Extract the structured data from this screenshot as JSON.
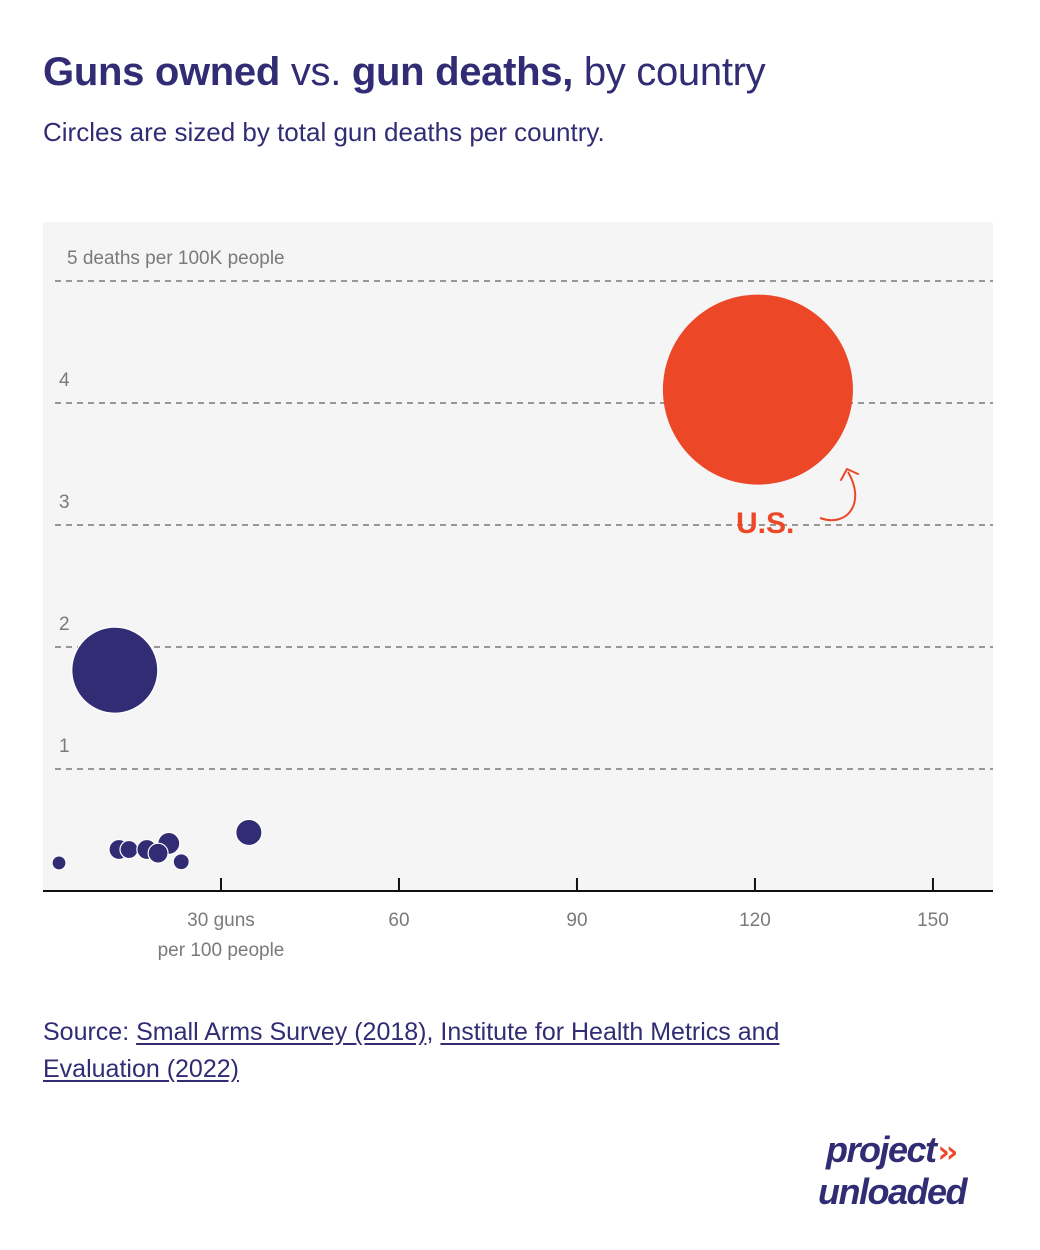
{
  "header": {
    "title_part1": "Guns owned",
    "title_part2": " vs. ",
    "title_part3": "gun deaths,",
    "title_part4": " by country",
    "subtitle": "Circles are sized by total gun deaths per country."
  },
  "colors": {
    "navy": "#312c74",
    "highlight": "#ec4727",
    "plot_background": "#f5f5f5",
    "grid": "#7a7a7a",
    "axis": "#111111"
  },
  "chart_data": {
    "type": "scatter",
    "title": "Guns owned vs. gun deaths, by country",
    "subtitle": "Circles are sized by total gun deaths per country.",
    "xlabel": "guns per 100 people",
    "ylabel": "deaths per 100K people",
    "xlim": [
      0,
      160
    ],
    "ylim": [
      0,
      5
    ],
    "grid": true,
    "x_ticks": [
      30,
      60,
      90,
      120,
      150
    ],
    "x_tick_labels": [
      "30 guns",
      "60",
      "90",
      "120",
      "150"
    ],
    "x_tick_sublabel": "per 100 people",
    "y_ticks": [
      1,
      2,
      3,
      4,
      5
    ],
    "y_tick_labels": [
      "1",
      "2",
      "3",
      "4",
      "5 deaths per 100K people"
    ],
    "size_encoding": "total gun deaths (relative, U.S. = 100)",
    "points": [
      {
        "x": 120.5,
        "y": 4.11,
        "size": 100,
        "highlight": true,
        "label": "U.S."
      },
      {
        "x": 12.1,
        "y": 1.81,
        "size": 20.5,
        "highlight": false
      },
      {
        "x": 2.7,
        "y": 0.23,
        "size": 0.54,
        "highlight": false
      },
      {
        "x": 12.8,
        "y": 0.34,
        "size": 1.1,
        "highlight": false
      },
      {
        "x": 14.5,
        "y": 0.34,
        "size": 0.9,
        "highlight": false
      },
      {
        "x": 17.5,
        "y": 0.34,
        "size": 1.1,
        "highlight": false
      },
      {
        "x": 21.2,
        "y": 0.39,
        "size": 1.34,
        "highlight": false
      },
      {
        "x": 19.4,
        "y": 0.31,
        "size": 1.1,
        "highlight": false
      },
      {
        "x": 23.3,
        "y": 0.24,
        "size": 0.71,
        "highlight": false
      },
      {
        "x": 34.7,
        "y": 0.48,
        "size": 1.9,
        "highlight": false
      }
    ],
    "annotations": [
      {
        "text": "U.S.",
        "target": "U.S.",
        "arrow": true
      }
    ]
  },
  "source": {
    "prefix": "Source: ",
    "link1": "Small Arms Survey (2018)",
    "separator": ", ",
    "link2": "Institute for Health Metrics and Evaluation (2022)"
  },
  "logo": {
    "line1": "project",
    "line2": "unloaded",
    "chevrons": "››"
  }
}
